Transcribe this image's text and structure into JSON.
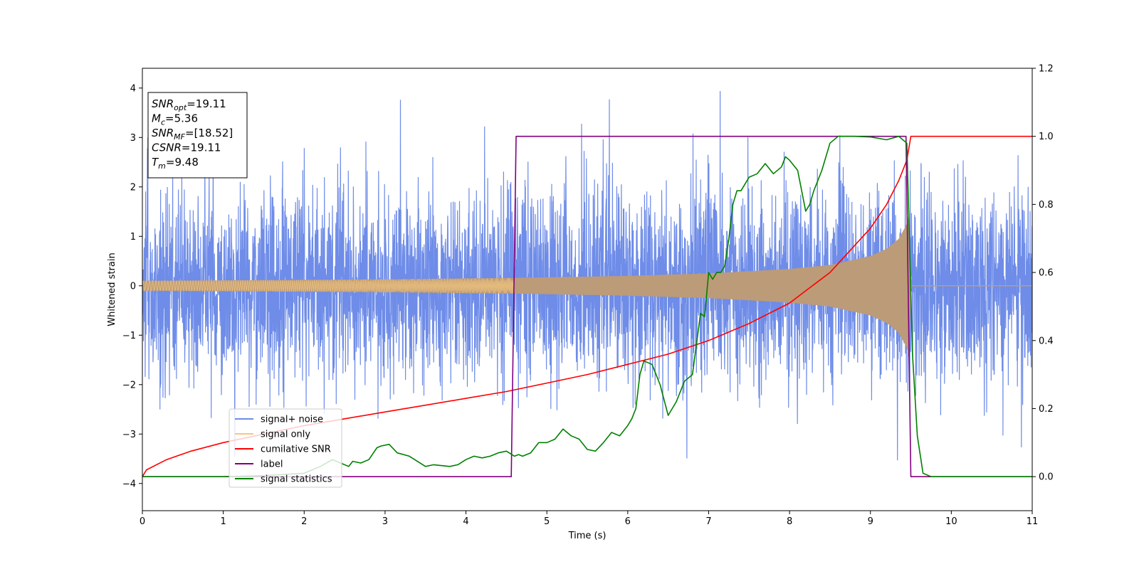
{
  "chart_data": {
    "type": "line",
    "title": "",
    "xlabel": "Time (s)",
    "ylabel": "Whitened strain",
    "y2label": "",
    "xlim": [
      0,
      11
    ],
    "ylim": [
      -4.55,
      4.4
    ],
    "y2lim": [
      -0.1,
      1.2
    ],
    "grid": false,
    "legend_position": "bottom-left",
    "x_ticks": [
      0,
      1,
      2,
      3,
      4,
      5,
      6,
      7,
      8,
      9,
      10,
      11
    ],
    "y_ticks": [
      -4,
      -3,
      -2,
      -1,
      0,
      1,
      2,
      3,
      4
    ],
    "y2_ticks": [
      0.0,
      0.2,
      0.4,
      0.6,
      0.8,
      1.0,
      1.2
    ],
    "annotation": [
      {
        "base": "SNR",
        "sub": "opt",
        "rest": "=19.11"
      },
      {
        "base": "M",
        "sub": "c",
        "rest": "=5.36"
      },
      {
        "base": "SNR",
        "sub": "MF",
        "rest": "=[18.52]"
      },
      {
        "base": "CSNR",
        "sub": "",
        "rest": "=19.11"
      },
      {
        "base": "T",
        "sub": "m",
        "rest": "=9.48"
      }
    ],
    "series": [
      {
        "name": "signal+ noise",
        "color": "#6e8ce8",
        "axis": "left",
        "kind": "noise",
        "sigma": 1.0,
        "amplitude_range": [
          -4.1,
          4.0
        ]
      },
      {
        "name": "signal only",
        "color": "#f5c77e",
        "fill": "#bc9b78",
        "axis": "left",
        "kind": "chirp_envelope",
        "x": [
          0,
          1,
          2,
          3,
          4,
          4.6,
          5,
          6,
          7,
          8,
          8.5,
          9,
          9.2,
          9.35,
          9.45,
          9.48,
          9.5,
          11
        ],
        "amplitude": [
          0.1,
          0.11,
          0.12,
          0.13,
          0.15,
          0.16,
          0.17,
          0.2,
          0.25,
          0.34,
          0.42,
          0.6,
          0.75,
          0.95,
          1.25,
          1.5,
          0.0,
          0.0
        ]
      },
      {
        "name": "cumilative SNR",
        "color": "#ff0000",
        "axis": "right",
        "x": [
          0,
          0.05,
          0.3,
          0.6,
          1,
          1.5,
          2,
          2.5,
          3,
          3.5,
          4,
          4.5,
          5,
          5.5,
          6,
          6.5,
          7,
          7.5,
          8,
          8.5,
          9,
          9.2,
          9.35,
          9.45,
          9.5,
          11
        ],
        "values": [
          0.0,
          0.02,
          0.05,
          0.075,
          0.1,
          0.125,
          0.15,
          0.17,
          0.19,
          0.21,
          0.23,
          0.25,
          0.275,
          0.3,
          0.33,
          0.36,
          0.4,
          0.45,
          0.51,
          0.6,
          0.73,
          0.8,
          0.87,
          0.93,
          1.0,
          1.0
        ]
      },
      {
        "name": "label",
        "color": "#800080",
        "axis": "right",
        "x": [
          0,
          4.56,
          4.62,
          9.44,
          9.5,
          11
        ],
        "values": [
          0.0,
          0.0,
          1.0,
          1.0,
          0.0,
          0.0
        ]
      },
      {
        "name": "signal statistics",
        "color": "#008000",
        "axis": "right",
        "x": [
          0,
          0.5,
          1,
          1.5,
          2,
          2.2,
          2.35,
          2.45,
          2.55,
          2.6,
          2.7,
          2.8,
          2.9,
          2.95,
          3.05,
          3.15,
          3.3,
          3.5,
          3.6,
          3.8,
          3.9,
          4.0,
          4.1,
          4.2,
          4.3,
          4.4,
          4.5,
          4.6,
          4.65,
          4.7,
          4.8,
          4.9,
          5.0,
          5.1,
          5.2,
          5.3,
          5.4,
          5.5,
          5.6,
          5.7,
          5.8,
          5.9,
          6.0,
          6.05,
          6.1,
          6.15,
          6.2,
          6.3,
          6.35,
          6.4,
          6.5,
          6.6,
          6.7,
          6.8,
          6.9,
          6.95,
          7.0,
          7.05,
          7.1,
          7.15,
          7.2,
          7.25,
          7.3,
          7.35,
          7.4,
          7.45,
          7.5,
          7.6,
          7.7,
          7.8,
          7.9,
          7.95,
          8.0,
          8.1,
          8.2,
          8.25,
          8.3,
          8.4,
          8.5,
          8.6,
          8.8,
          9.0,
          9.2,
          9.35,
          9.45,
          9.52,
          9.58,
          9.65,
          9.75,
          11
        ],
        "values": [
          0.0,
          0.0,
          0.0,
          0.003,
          0.01,
          0.03,
          0.05,
          0.04,
          0.03,
          0.045,
          0.04,
          0.05,
          0.085,
          0.09,
          0.095,
          0.07,
          0.06,
          0.03,
          0.035,
          0.03,
          0.035,
          0.05,
          0.06,
          0.055,
          0.06,
          0.07,
          0.075,
          0.06,
          0.065,
          0.06,
          0.07,
          0.1,
          0.1,
          0.11,
          0.14,
          0.12,
          0.11,
          0.08,
          0.075,
          0.1,
          0.13,
          0.12,
          0.15,
          0.17,
          0.2,
          0.3,
          0.34,
          0.33,
          0.3,
          0.27,
          0.18,
          0.22,
          0.28,
          0.3,
          0.48,
          0.47,
          0.6,
          0.58,
          0.6,
          0.6,
          0.62,
          0.7,
          0.8,
          0.84,
          0.84,
          0.86,
          0.88,
          0.89,
          0.92,
          0.89,
          0.91,
          0.94,
          0.93,
          0.9,
          0.78,
          0.8,
          0.84,
          0.9,
          0.98,
          1.0,
          1.0,
          0.998,
          0.99,
          1.0,
          0.98,
          0.36,
          0.12,
          0.01,
          0.0,
          0.0
        ]
      }
    ]
  }
}
